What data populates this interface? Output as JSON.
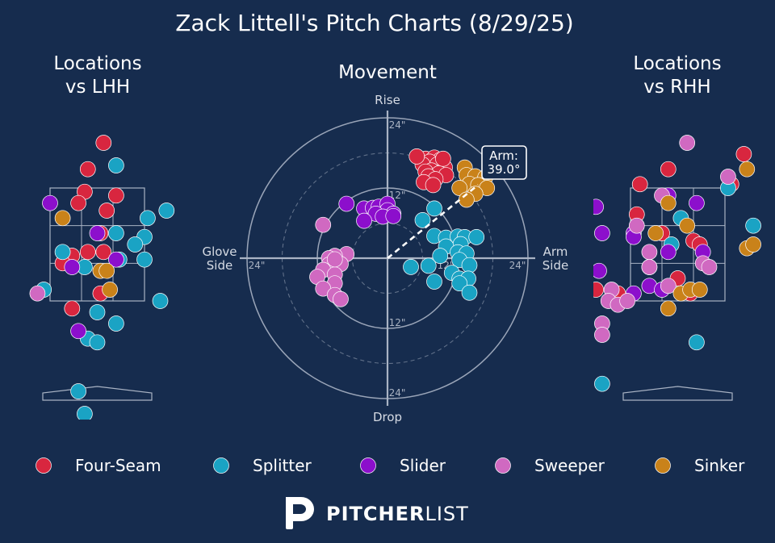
{
  "title": "Zack Littell's Pitch Charts (8/29/25)",
  "colors": {
    "background": "#162c4e",
    "Four-Seam": "#d8263f",
    "Splitter": "#1aa3c4",
    "Slider": "#8c0fcc",
    "Sweeper": "#d069c1",
    "Sinker": "#c9821a"
  },
  "legend": [
    "Four-Seam",
    "Splitter",
    "Slider",
    "Sweeper",
    "Sinker"
  ],
  "brand": {
    "name_bold": "PITCHER",
    "name_light": "LIST",
    "logo": "pitcherlist-logo-icon"
  },
  "chart_data": [
    {
      "type": "scatter",
      "title": "Locations\nvs LHH",
      "title_lines": [
        "Locations",
        "vs LHH"
      ],
      "units": "strike-zone grid cells (x: 0-3 across zone, y: 0-3 up zone)",
      "points": [
        {
          "p": "Four-Seam",
          "x": 1.7,
          "y": 4.2
        },
        {
          "p": "Four-Seam",
          "x": 1.2,
          "y": 3.5
        },
        {
          "p": "Four-Seam",
          "x": 1.1,
          "y": 2.9
        },
        {
          "p": "Four-Seam",
          "x": 2.1,
          "y": 2.8
        },
        {
          "p": "Four-Seam",
          "x": 0.9,
          "y": 2.6
        },
        {
          "p": "Four-Seam",
          "x": 1.8,
          "y": 2.4
        },
        {
          "p": "Four-Seam",
          "x": 1.6,
          "y": 1.8
        },
        {
          "p": "Four-Seam",
          "x": 1.2,
          "y": 1.3
        },
        {
          "p": "Four-Seam",
          "x": 1.7,
          "y": 1.3
        },
        {
          "p": "Four-Seam",
          "x": 0.7,
          "y": 1.2
        },
        {
          "p": "Four-Seam",
          "x": 0.4,
          "y": 1.0
        },
        {
          "p": "Four-Seam",
          "x": 1.6,
          "y": 0.2
        },
        {
          "p": "Four-Seam",
          "x": 0.7,
          "y": -0.2
        },
        {
          "p": "Splitter",
          "x": 2.1,
          "y": 3.6
        },
        {
          "p": "Splitter",
          "x": 3.1,
          "y": 2.2
        },
        {
          "p": "Splitter",
          "x": 3.7,
          "y": 2.4
        },
        {
          "p": "Splitter",
          "x": 2.1,
          "y": 1.8
        },
        {
          "p": "Splitter",
          "x": 3.0,
          "y": 1.7
        },
        {
          "p": "Splitter",
          "x": 2.7,
          "y": 1.5
        },
        {
          "p": "Splitter",
          "x": 0.4,
          "y": 1.3
        },
        {
          "p": "Splitter",
          "x": 1.1,
          "y": 0.9
        },
        {
          "p": "Splitter",
          "x": 2.2,
          "y": 1.1
        },
        {
          "p": "Splitter",
          "x": 3.0,
          "y": 1.1
        },
        {
          "p": "Splitter",
          "x": -0.2,
          "y": 0.3
        },
        {
          "p": "Splitter",
          "x": 3.5,
          "y": 0.0
        },
        {
          "p": "Splitter",
          "x": 1.5,
          "y": -0.3
        },
        {
          "p": "Splitter",
          "x": 2.1,
          "y": -0.6
        },
        {
          "p": "Splitter",
          "x": 1.2,
          "y": -1.0
        },
        {
          "p": "Splitter",
          "x": 1.5,
          "y": -1.1
        },
        {
          "p": "Splitter",
          "x": 0.9,
          "y": -2.4
        },
        {
          "p": "Splitter",
          "x": 1.1,
          "y": -3.0
        },
        {
          "p": "Slider",
          "x": 0.0,
          "y": 2.6
        },
        {
          "p": "Slider",
          "x": 1.5,
          "y": 1.8
        },
        {
          "p": "Slider",
          "x": 2.1,
          "y": 1.1
        },
        {
          "p": "Slider",
          "x": 0.7,
          "y": 0.9
        },
        {
          "p": "Slider",
          "x": 0.9,
          "y": -0.8
        },
        {
          "p": "Sweeper",
          "x": -0.4,
          "y": 0.2
        },
        {
          "p": "Sinker",
          "x": 0.4,
          "y": 2.2
        },
        {
          "p": "Sinker",
          "x": 1.6,
          "y": 0.8
        },
        {
          "p": "Sinker",
          "x": 1.8,
          "y": 0.8
        },
        {
          "p": "Sinker",
          "x": 1.9,
          "y": 0.3
        }
      ]
    },
    {
      "type": "scatter",
      "title": "Movement",
      "units": "inches of break (x: negative = glove side, positive = arm side; y: positive = rise)",
      "axis_labels": {
        "top": "Rise",
        "bottom": "Drop",
        "left": "Glove\nSide",
        "right": "Arm\nSide",
        "left_lines": [
          "Glove",
          "Side"
        ],
        "right_lines": [
          "Arm",
          "Side"
        ]
      },
      "rings": [
        6,
        12,
        18,
        24
      ],
      "ring_labels": [
        "12\"",
        "24\"",
        "12\"",
        "24\"",
        "24\"",
        "24\"",
        "12\""
      ],
      "arm_angle_deg": 39.0,
      "arm_label": [
        "Arm:",
        "39.0°"
      ],
      "points": [
        {
          "p": "Four-Seam",
          "x": 6.5,
          "y": 17.0
        },
        {
          "p": "Four-Seam",
          "x": 8.0,
          "y": 17.2
        },
        {
          "p": "Four-Seam",
          "x": 9.0,
          "y": 16.8
        },
        {
          "p": "Four-Seam",
          "x": 7.2,
          "y": 16.5
        },
        {
          "p": "Four-Seam",
          "x": 8.5,
          "y": 16.0
        },
        {
          "p": "Four-Seam",
          "x": 6.0,
          "y": 16.0
        },
        {
          "p": "Four-Seam",
          "x": 9.8,
          "y": 15.5
        },
        {
          "p": "Four-Seam",
          "x": 7.5,
          "y": 15.0
        },
        {
          "p": "Four-Seam",
          "x": 6.5,
          "y": 14.8
        },
        {
          "p": "Four-Seam",
          "x": 8.8,
          "y": 14.5
        },
        {
          "p": "Four-Seam",
          "x": 10.0,
          "y": 14.2
        },
        {
          "p": "Four-Seam",
          "x": 7.0,
          "y": 14.0
        },
        {
          "p": "Four-Seam",
          "x": 8.2,
          "y": 13.5
        },
        {
          "p": "Four-Seam",
          "x": 6.2,
          "y": 13.0
        },
        {
          "p": "Four-Seam",
          "x": 7.8,
          "y": 12.5
        },
        {
          "p": "Four-Seam",
          "x": 5.0,
          "y": 17.4
        },
        {
          "p": "Four-Seam",
          "x": 9.5,
          "y": 17.0
        },
        {
          "p": "Splitter",
          "x": 8.0,
          "y": 8.5
        },
        {
          "p": "Splitter",
          "x": 6.0,
          "y": 6.5
        },
        {
          "p": "Splitter",
          "x": 8.0,
          "y": 3.8
        },
        {
          "p": "Splitter",
          "x": 10.0,
          "y": 3.5
        },
        {
          "p": "Splitter",
          "x": 12.0,
          "y": 3.7
        },
        {
          "p": "Splitter",
          "x": 13.2,
          "y": 3.6
        },
        {
          "p": "Splitter",
          "x": 15.2,
          "y": 3.6
        },
        {
          "p": "Splitter",
          "x": 12.5,
          "y": 2.4
        },
        {
          "p": "Splitter",
          "x": 10.0,
          "y": 2.0
        },
        {
          "p": "Splitter",
          "x": 12.0,
          "y": 1.0
        },
        {
          "p": "Splitter",
          "x": 9.0,
          "y": 0.4
        },
        {
          "p": "Splitter",
          "x": 13.5,
          "y": 0.8
        },
        {
          "p": "Splitter",
          "x": 12.3,
          "y": -0.3
        },
        {
          "p": "Splitter",
          "x": 14.0,
          "y": -1.2
        },
        {
          "p": "Splitter",
          "x": 4.0,
          "y": -1.5
        },
        {
          "p": "Splitter",
          "x": 7.0,
          "y": -1.3
        },
        {
          "p": "Splitter",
          "x": 11.0,
          "y": -2.5
        },
        {
          "p": "Splitter",
          "x": 12.3,
          "y": -3.5
        },
        {
          "p": "Splitter",
          "x": 13.8,
          "y": -3.5
        },
        {
          "p": "Splitter",
          "x": 8.0,
          "y": -4.0
        },
        {
          "p": "Splitter",
          "x": 12.3,
          "y": -4.3
        },
        {
          "p": "Splitter",
          "x": 14.0,
          "y": -5.9
        },
        {
          "p": "Slider",
          "x": -7.0,
          "y": 9.3
        },
        {
          "p": "Slider",
          "x": -4.0,
          "y": 8.5
        },
        {
          "p": "Slider",
          "x": -2.5,
          "y": 8.6
        },
        {
          "p": "Slider",
          "x": -1.5,
          "y": 8.8
        },
        {
          "p": "Slider",
          "x": 0.0,
          "y": 9.3
        },
        {
          "p": "Slider",
          "x": 0.0,
          "y": 8.2
        },
        {
          "p": "Slider",
          "x": 1.0,
          "y": 7.6
        },
        {
          "p": "Slider",
          "x": -2.0,
          "y": 7.6
        },
        {
          "p": "Slider",
          "x": -0.8,
          "y": 7.1
        },
        {
          "p": "Slider",
          "x": -4.0,
          "y": 6.4
        },
        {
          "p": "Slider",
          "x": 1.0,
          "y": 7.2
        },
        {
          "p": "Sweeper",
          "x": -11.0,
          "y": 5.7
        },
        {
          "p": "Sweeper",
          "x": -7.0,
          "y": 0.7
        },
        {
          "p": "Sweeper",
          "x": -9.0,
          "y": 0.4
        },
        {
          "p": "Sweeper",
          "x": -10.0,
          "y": 0.0
        },
        {
          "p": "Sweeper",
          "x": -8.0,
          "y": -1.0
        },
        {
          "p": "Sweeper",
          "x": -10.0,
          "y": -1.1
        },
        {
          "p": "Sweeper",
          "x": -11.0,
          "y": -2.0
        },
        {
          "p": "Sweeper",
          "x": -9.0,
          "y": -2.8
        },
        {
          "p": "Sweeper",
          "x": -12.0,
          "y": -3.2
        },
        {
          "p": "Sweeper",
          "x": -9.0,
          "y": -4.3
        },
        {
          "p": "Sweeper",
          "x": -11.0,
          "y": -5.2
        },
        {
          "p": "Sweeper",
          "x": -9.0,
          "y": -6.3
        },
        {
          "p": "Sweeper",
          "x": -8.0,
          "y": -7.0
        },
        {
          "p": "Sweeper",
          "x": -9.0,
          "y": -0.2
        },
        {
          "p": "Sinker",
          "x": 13.2,
          "y": 15.5
        },
        {
          "p": "Sinker",
          "x": 13.5,
          "y": 14.2
        },
        {
          "p": "Sinker",
          "x": 15.0,
          "y": 14.0
        },
        {
          "p": "Sinker",
          "x": 16.7,
          "y": 13.8
        },
        {
          "p": "Sinker",
          "x": 14.0,
          "y": 12.7
        },
        {
          "p": "Sinker",
          "x": 15.5,
          "y": 12.5
        },
        {
          "p": "Sinker",
          "x": 12.3,
          "y": 12.0
        },
        {
          "p": "Sinker",
          "x": 17.0,
          "y": 12.0
        },
        {
          "p": "Sinker",
          "x": 15.0,
          "y": 11.0
        },
        {
          "p": "Sinker",
          "x": 13.5,
          "y": 10.0
        }
      ]
    },
    {
      "type": "scatter",
      "title": "Locations\nvs RHH",
      "title_lines": [
        "Locations",
        "vs RHH"
      ],
      "units": "strike-zone grid cells (x: 0-3 across zone, y: 0-3 up zone)",
      "points": [
        {
          "p": "Four-Seam",
          "x": 3.6,
          "y": 3.9
        },
        {
          "p": "Four-Seam",
          "x": 1.2,
          "y": 3.5
        },
        {
          "p": "Four-Seam",
          "x": 0.3,
          "y": 3.1
        },
        {
          "p": "Four-Seam",
          "x": 3.2,
          "y": 3.1
        },
        {
          "p": "Four-Seam",
          "x": 0.2,
          "y": 2.3
        },
        {
          "p": "Four-Seam",
          "x": 1.0,
          "y": 1.8
        },
        {
          "p": "Four-Seam",
          "x": 2.0,
          "y": 1.6
        },
        {
          "p": "Four-Seam",
          "x": 2.2,
          "y": 1.5
        },
        {
          "p": "Four-Seam",
          "x": 1.5,
          "y": 0.6
        },
        {
          "p": "Four-Seam",
          "x": -1.1,
          "y": 0.3
        },
        {
          "p": "Four-Seam",
          "x": -0.4,
          "y": 0.2
        },
        {
          "p": "Four-Seam",
          "x": 1.9,
          "y": 0.2
        },
        {
          "p": "Splitter",
          "x": 3.1,
          "y": 3.0
        },
        {
          "p": "Splitter",
          "x": 1.6,
          "y": 2.2
        },
        {
          "p": "Splitter",
          "x": 3.9,
          "y": 2.0
        },
        {
          "p": "Splitter",
          "x": 1.3,
          "y": 1.5
        },
        {
          "p": "Splitter",
          "x": 0.6,
          "y": 0.9
        },
        {
          "p": "Splitter",
          "x": 2.1,
          "y": -1.1
        },
        {
          "p": "Splitter",
          "x": -0.9,
          "y": -2.2
        },
        {
          "p": "Slider",
          "x": 1.2,
          "y": 2.8
        },
        {
          "p": "Slider",
          "x": 2.1,
          "y": 2.6
        },
        {
          "p": "Slider",
          "x": -1.1,
          "y": 2.5
        },
        {
          "p": "Slider",
          "x": 0.1,
          "y": 1.8
        },
        {
          "p": "Slider",
          "x": 0.1,
          "y": 1.7
        },
        {
          "p": "Slider",
          "x": -0.9,
          "y": 1.8
        },
        {
          "p": "Slider",
          "x": 1.2,
          "y": 1.3
        },
        {
          "p": "Slider",
          "x": 2.3,
          "y": 1.3
        },
        {
          "p": "Slider",
          "x": -1.0,
          "y": 0.8
        },
        {
          "p": "Slider",
          "x": 0.1,
          "y": 0.2
        },
        {
          "p": "Slider",
          "x": 0.6,
          "y": 0.4
        },
        {
          "p": "Slider",
          "x": 1.0,
          "y": 0.3
        },
        {
          "p": "Sweeper",
          "x": 1.8,
          "y": 4.2
        },
        {
          "p": "Sweeper",
          "x": 3.1,
          "y": 3.3
        },
        {
          "p": "Sweeper",
          "x": 1.0,
          "y": 2.8
        },
        {
          "p": "Sweeper",
          "x": 0.2,
          "y": 2.0
        },
        {
          "p": "Sweeper",
          "x": 0.6,
          "y": 1.3
        },
        {
          "p": "Sweeper",
          "x": 2.3,
          "y": 1.0
        },
        {
          "p": "Sweeper",
          "x": 2.5,
          "y": 0.9
        },
        {
          "p": "Sweeper",
          "x": 0.6,
          "y": 0.9
        },
        {
          "p": "Sweeper",
          "x": 1.2,
          "y": 0.4
        },
        {
          "p": "Sweeper",
          "x": -0.6,
          "y": 0.3
        },
        {
          "p": "Sweeper",
          "x": -0.7,
          "y": 0.0
        },
        {
          "p": "Sweeper",
          "x": -0.4,
          "y": -0.1
        },
        {
          "p": "Sweeper",
          "x": -0.1,
          "y": 0.0
        },
        {
          "p": "Sweeper",
          "x": -0.9,
          "y": -0.6
        },
        {
          "p": "Sweeper",
          "x": -0.9,
          "y": -0.9
        },
        {
          "p": "Sinker",
          "x": 3.7,
          "y": 3.5
        },
        {
          "p": "Sinker",
          "x": 1.2,
          "y": 2.6
        },
        {
          "p": "Sinker",
          "x": 0.8,
          "y": 1.8
        },
        {
          "p": "Sinker",
          "x": 1.8,
          "y": 2.0
        },
        {
          "p": "Sinker",
          "x": 3.7,
          "y": 1.4
        },
        {
          "p": "Sinker",
          "x": 3.9,
          "y": 1.5
        },
        {
          "p": "Sinker",
          "x": 1.6,
          "y": 0.2
        },
        {
          "p": "Sinker",
          "x": 1.9,
          "y": 0.3
        },
        {
          "p": "Sinker",
          "x": 2.2,
          "y": 0.3
        },
        {
          "p": "Sinker",
          "x": 1.2,
          "y": -0.2
        }
      ]
    }
  ]
}
